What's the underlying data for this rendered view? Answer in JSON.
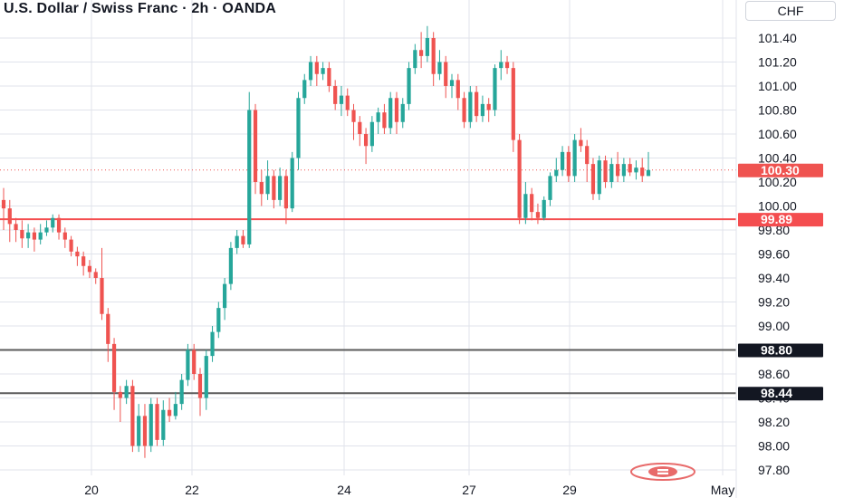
{
  "header": {
    "title": "U.S. Dollar / Swiss Franc · 2h · OANDA"
  },
  "price_axis": {
    "currency": "CHF"
  },
  "colors": {
    "up": "#26a69a",
    "down": "#ef5350",
    "grid": "#e0e3eb",
    "level_red": "#f44d4f",
    "level_dark": "#5b5b5b",
    "badge_dark": "#131722"
  },
  "chart_data": {
    "type": "candlestick",
    "ylim": [
      97.7,
      101.55
    ],
    "yticks": [
      "101.40",
      "101.20",
      "101.00",
      "100.80",
      "100.60",
      "100.40",
      "100.20",
      "100.00",
      "99.80",
      "99.60",
      "99.40",
      "99.20",
      "99.00",
      "98.80",
      "98.60",
      "98.40",
      "98.20",
      "98.00",
      "97.80"
    ],
    "xticks": [
      "20",
      "22",
      "24",
      "27",
      "29",
      "May"
    ],
    "last_price": {
      "value": 100.3,
      "label": "100.30"
    },
    "levels": [
      {
        "value": 99.89,
        "label": "99.89",
        "color": "red"
      },
      {
        "value": 98.8,
        "label": "98.80",
        "color": "dark"
      },
      {
        "value": 98.44,
        "label": "98.44",
        "color": "dark"
      }
    ],
    "candles": [
      [
        100.05,
        99.98,
        100.15,
        99.8
      ],
      [
        99.98,
        99.85,
        100.05,
        99.7
      ],
      [
        99.85,
        99.8,
        99.9,
        99.7
      ],
      [
        99.8,
        99.73,
        99.88,
        99.65
      ],
      [
        99.73,
        99.78,
        99.85,
        99.65
      ],
      [
        99.78,
        99.72,
        99.82,
        99.62
      ],
      [
        99.72,
        99.78,
        99.85,
        99.68
      ],
      [
        99.78,
        99.82,
        99.88,
        99.75
      ],
      [
        99.82,
        99.9,
        99.93,
        99.78
      ],
      [
        99.9,
        99.78,
        99.93,
        99.72
      ],
      [
        99.78,
        99.72,
        99.82,
        99.65
      ],
      [
        99.72,
        99.62,
        99.75,
        99.58
      ],
      [
        99.62,
        99.58,
        99.66,
        99.5
      ],
      [
        99.58,
        99.5,
        99.62,
        99.42
      ],
      [
        99.5,
        99.45,
        99.55,
        99.4
      ],
      [
        99.45,
        99.4,
        99.48,
        99.35
      ],
      [
        99.4,
        99.1,
        99.65,
        99.05
      ],
      [
        99.1,
        98.85,
        99.15,
        98.7
      ],
      [
        98.85,
        98.45,
        98.9,
        98.3
      ],
      [
        98.45,
        98.4,
        98.5,
        98.2
      ],
      [
        98.4,
        98.5,
        98.55,
        98.35
      ],
      [
        98.5,
        98.0,
        98.55,
        97.95
      ],
      [
        98.0,
        98.25,
        98.35,
        97.95
      ],
      [
        98.25,
        98.0,
        98.35,
        97.9
      ],
      [
        98.0,
        98.35,
        98.4,
        97.95
      ],
      [
        98.35,
        98.05,
        98.4,
        98.0
      ],
      [
        98.05,
        98.3,
        98.38,
        98.0
      ],
      [
        98.3,
        98.25,
        98.4,
        98.2
      ],
      [
        98.25,
        98.35,
        98.45,
        98.22
      ],
      [
        98.35,
        98.55,
        98.6,
        98.3
      ],
      [
        98.55,
        98.8,
        98.85,
        98.5
      ],
      [
        98.8,
        98.6,
        98.85,
        98.55
      ],
      [
        98.6,
        98.4,
        98.65,
        98.25
      ],
      [
        98.4,
        98.75,
        98.8,
        98.3
      ],
      [
        98.75,
        98.95,
        99.0,
        98.7
      ],
      [
        98.95,
        99.15,
        99.2,
        98.9
      ],
      [
        99.15,
        99.35,
        99.4,
        99.05
      ],
      [
        99.35,
        99.65,
        99.7,
        99.3
      ],
      [
        99.65,
        99.75,
        99.8,
        99.6
      ],
      [
        99.75,
        99.68,
        99.8,
        99.65
      ],
      [
        99.68,
        100.8,
        100.95,
        99.65
      ],
      [
        100.8,
        100.2,
        100.85,
        100.1
      ],
      [
        100.2,
        100.1,
        100.3,
        100.0
      ],
      [
        100.1,
        100.25,
        100.38,
        100.05
      ],
      [
        100.25,
        100.05,
        100.3,
        99.98
      ],
      [
        100.05,
        100.25,
        100.32,
        100.0
      ],
      [
        100.25,
        99.98,
        100.3,
        99.85
      ],
      [
        99.98,
        100.4,
        100.45,
        99.95
      ],
      [
        100.4,
        100.9,
        100.95,
        100.3
      ],
      [
        100.9,
        101.05,
        101.1,
        100.85
      ],
      [
        101.05,
        101.2,
        101.25,
        101.0
      ],
      [
        101.2,
        101.1,
        101.25,
        101.0
      ],
      [
        101.1,
        101.15,
        101.2,
        101.05
      ],
      [
        101.15,
        101.0,
        101.2,
        100.95
      ],
      [
        101.0,
        100.85,
        101.05,
        100.8
      ],
      [
        100.85,
        100.92,
        101.0,
        100.75
      ],
      [
        100.92,
        100.8,
        100.98,
        100.75
      ],
      [
        100.8,
        100.7,
        100.85,
        100.55
      ],
      [
        100.7,
        100.6,
        100.75,
        100.5
      ],
      [
        100.6,
        100.5,
        100.65,
        100.35
      ],
      [
        100.5,
        100.7,
        100.75,
        100.45
      ],
      [
        100.7,
        100.78,
        100.82,
        100.6
      ],
      [
        100.78,
        100.65,
        100.85,
        100.6
      ],
      [
        100.65,
        100.9,
        100.95,
        100.6
      ],
      [
        100.9,
        100.7,
        100.95,
        100.6
      ],
      [
        100.7,
        100.85,
        100.9,
        100.65
      ],
      [
        100.85,
        101.15,
        101.2,
        100.8
      ],
      [
        101.15,
        101.3,
        101.35,
        101.1
      ],
      [
        101.3,
        101.25,
        101.45,
        101.15
      ],
      [
        101.25,
        101.4,
        101.5,
        101.2
      ],
      [
        101.4,
        101.1,
        101.45,
        101.0
      ],
      [
        101.1,
        101.2,
        101.3,
        101.05
      ],
      [
        101.2,
        101.0,
        101.25,
        100.9
      ],
      [
        101.0,
        101.05,
        101.1,
        100.9
      ],
      [
        101.05,
        100.9,
        101.1,
        100.8
      ],
      [
        100.9,
        100.7,
        100.95,
        100.65
      ],
      [
        100.7,
        100.95,
        101.0,
        100.65
      ],
      [
        100.95,
        100.75,
        101.0,
        100.7
      ],
      [
        100.75,
        100.85,
        100.92,
        100.7
      ],
      [
        100.85,
        100.8,
        100.9,
        100.7
      ],
      [
        100.8,
        101.15,
        101.18,
        100.75
      ],
      [
        101.15,
        101.2,
        101.3,
        101.05
      ],
      [
        101.2,
        101.15,
        101.25,
        101.1
      ],
      [
        101.15,
        100.55,
        101.2,
        100.45
      ],
      [
        100.55,
        99.9,
        100.6,
        99.85
      ],
      [
        99.9,
        100.1,
        100.2,
        99.85
      ],
      [
        100.1,
        99.95,
        100.15,
        99.88
      ],
      [
        99.95,
        99.9,
        100.02,
        99.85
      ],
      [
        99.9,
        100.05,
        100.08,
        99.88
      ],
      [
        100.05,
        100.25,
        100.28,
        100.0
      ],
      [
        100.25,
        100.3,
        100.4,
        100.2
      ],
      [
        100.3,
        100.45,
        100.5,
        100.25
      ],
      [
        100.45,
        100.25,
        100.5,
        100.2
      ],
      [
        100.25,
        100.55,
        100.6,
        100.2
      ],
      [
        100.55,
        100.5,
        100.65,
        100.45
      ],
      [
        100.5,
        100.35,
        100.55,
        100.2
      ],
      [
        100.35,
        100.1,
        100.4,
        100.05
      ],
      [
        100.1,
        100.38,
        100.42,
        100.05
      ],
      [
        100.38,
        100.2,
        100.42,
        100.15
      ],
      [
        100.2,
        100.35,
        100.4,
        100.15
      ],
      [
        100.35,
        100.25,
        100.45,
        100.2
      ],
      [
        100.25,
        100.35,
        100.4,
        100.2
      ],
      [
        100.35,
        100.28,
        100.4,
        100.25
      ],
      [
        100.28,
        100.32,
        100.38,
        100.22
      ],
      [
        100.32,
        100.25,
        100.4,
        100.2
      ],
      [
        100.25,
        100.3,
        100.45,
        100.25
      ]
    ]
  }
}
